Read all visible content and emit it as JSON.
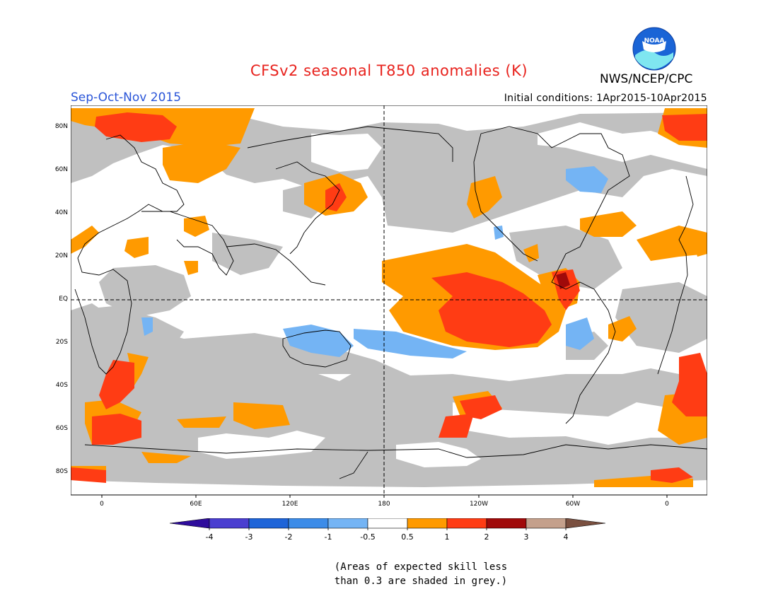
{
  "header": {
    "title": "CFSv2 seasonal T850 anomalies (K)",
    "season": "Sep-Oct-Nov 2015",
    "initial_conditions": "Initial conditions: 1Apr2015-10Apr2015",
    "agency": "NWS/NCEP/CPC",
    "logo_text": "NOAA"
  },
  "map": {
    "projection": "cylindrical equidistant",
    "lat_labels": [
      "80N",
      "60N",
      "40N",
      "20N",
      "EQ",
      "20S",
      "40S",
      "60S",
      "80S"
    ],
    "lon_labels": [
      "0",
      "60E",
      "120E",
      "180",
      "120W",
      "60W",
      "0"
    ],
    "skill_mask_color": "#c0c0c0",
    "reference_lines": [
      "equator",
      "180 meridian"
    ]
  },
  "colorbar": {
    "labels": [
      "-4",
      "-3",
      "-2",
      "-1",
      "-0.5",
      "0.5",
      "1",
      "2",
      "3",
      "4"
    ],
    "colors": [
      "#2e0c9c",
      "#4a3ed0",
      "#1e64d8",
      "#3c8ce8",
      "#74b4f4",
      "#ffffff",
      "#ff9a00",
      "#ff3c14",
      "#a00a0a",
      "#c4a08c",
      "#7a5040"
    ]
  },
  "note": {
    "line1": "(Areas of expected skill less",
    "line2": "than 0.3 are shaded in grey.)"
  }
}
